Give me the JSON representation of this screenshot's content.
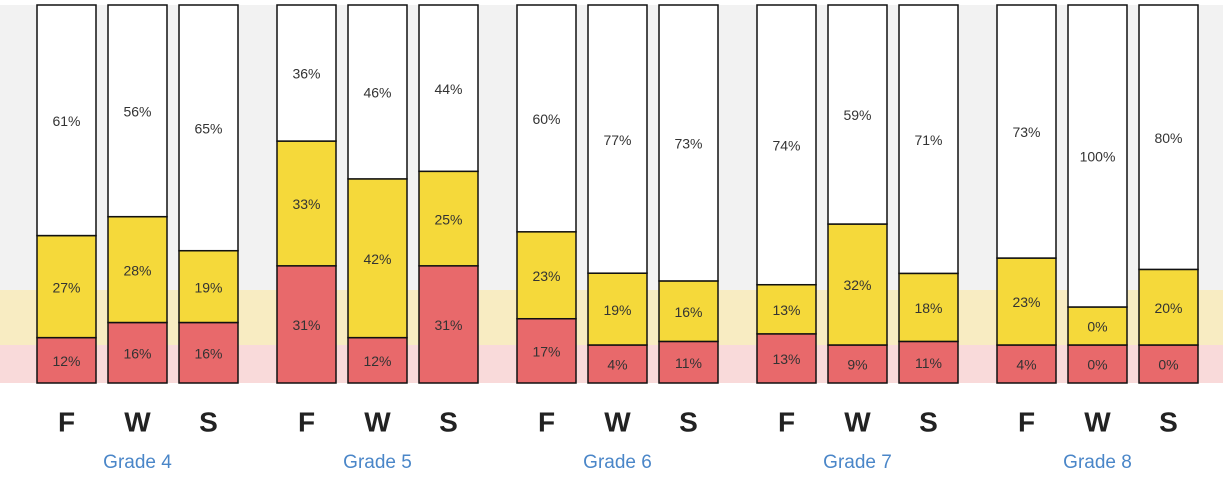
{
  "chart_data": {
    "type": "stacked_bar",
    "groups": [
      "Grade 4",
      "Grade 5",
      "Grade 6",
      "Grade 7",
      "Grade 8"
    ],
    "categories": [
      "F",
      "W",
      "S",
      "F",
      "W",
      "S",
      "F",
      "W",
      "S",
      "F",
      "W",
      "S",
      "F",
      "W",
      "S"
    ],
    "ylim": [
      0,
      100
    ],
    "series": [
      {
        "color": "#e8696b",
        "values": [
          12,
          16,
          16,
          31,
          12,
          31,
          17,
          4,
          11,
          13,
          9,
          11,
          4,
          0,
          0
        ],
        "value_labels": [
          "12%",
          "16%",
          "16%",
          "31%",
          "12%",
          "31%",
          "17%",
          "4%",
          "11%",
          "13%",
          "9%",
          "11%",
          "4%",
          "0%",
          "0%"
        ]
      },
      {
        "color": "#f5d93a",
        "values": [
          27,
          28,
          19,
          33,
          42,
          25,
          23,
          19,
          16,
          13,
          32,
          18,
          23,
          0,
          20
        ],
        "value_labels": [
          "27%",
          "28%",
          "19%",
          "33%",
          "42%",
          "25%",
          "23%",
          "19%",
          "16%",
          "13%",
          "32%",
          "18%",
          "23%",
          "0%",
          "20%"
        ]
      },
      {
        "color": "#ffffff",
        "values": [
          61,
          56,
          65,
          36,
          46,
          44,
          60,
          77,
          73,
          74,
          59,
          71,
          73,
          100,
          80
        ],
        "value_labels": [
          "61%",
          "56%",
          "65%",
          "36%",
          "46%",
          "44%",
          "60%",
          "77%",
          "73%",
          "74%",
          "59%",
          "71%",
          "73%",
          "100%",
          "80%"
        ]
      }
    ]
  }
}
